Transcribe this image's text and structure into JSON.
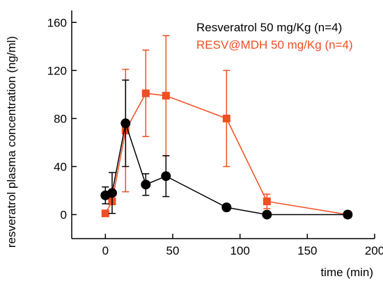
{
  "chart_data": {
    "type": "line",
    "xlabel": "time (min)",
    "ylabel": "resveratrol plasma concentration (ng/ml)",
    "xlim": [
      -25,
      200
    ],
    "ylim": [
      -20,
      170
    ],
    "xticks": [
      0,
      50,
      100,
      150,
      200
    ],
    "yticks": [
      0,
      40,
      80,
      120,
      160
    ],
    "grid": false,
    "legend_position": "top-right",
    "series": [
      {
        "name": "Resveratrol 50 mg/Kg (n=4)",
        "color": "#000000",
        "marker": "circle",
        "x": [
          0,
          5,
          15,
          30,
          45,
          90,
          120,
          180
        ],
        "y": [
          16,
          18,
          76,
          25,
          32,
          6,
          0,
          0
        ],
        "err": [
          7,
          17,
          36,
          9,
          17,
          0,
          0,
          0
        ]
      },
      {
        "name": "RESV@MDH 50 mg/Kg (n=4)",
        "color": "#f04e23",
        "marker": "square",
        "x": [
          0,
          5,
          15,
          30,
          45,
          90,
          120,
          180
        ],
        "y": [
          1,
          11,
          70,
          101,
          99,
          80,
          11,
          0
        ],
        "err": [
          0,
          0,
          51,
          36,
          50,
          40,
          6,
          0
        ]
      }
    ]
  }
}
